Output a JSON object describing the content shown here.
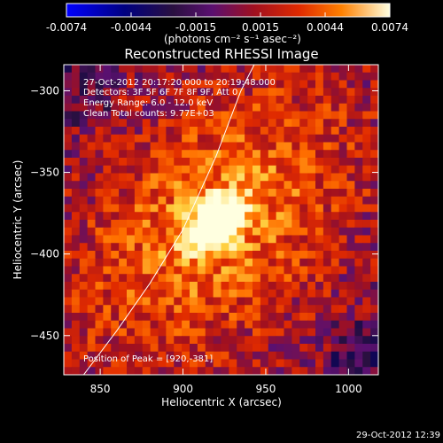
{
  "colors": {
    "background": "#000000",
    "foreground": "#ffffff",
    "colormap": [
      "#0000ff",
      "#000060",
      "#2a1040",
      "#5a1070",
      "#a01020",
      "#e02a00",
      "#ff7000",
      "#ffd040",
      "#ffffe0"
    ]
  },
  "colorbar": {
    "ticks": [
      "-0.0074",
      "-0.0044",
      "-0.0015",
      "0.0015",
      "0.0044",
      "0.0074"
    ],
    "units": "(photons cm⁻² s⁻¹ asec⁻²)"
  },
  "overlay": {
    "line1": "27-Oct-2012 20:17:20.000 to 20:19:48.000",
    "line2": "Detectors: 3F 5F 6F 7F 8F 9F, Att 0",
    "line3": "Energy Range: 6.0 - 12.0 keV",
    "line4": "Clean    Total counts: 9.77E+03",
    "peak": "Position of Peak = [920,-381]"
  },
  "footer": {
    "timestamp": "29-Oct-2012 12:39"
  },
  "chart_data": {
    "type": "heatmap",
    "title": "Reconstructed RHESSI Image",
    "xlabel": "Heliocentric X (arcsec)",
    "ylabel": "Heliocentric Y (arcsec)",
    "xlim": [
      828,
      1018
    ],
    "ylim": [
      -474,
      -284
    ],
    "x_ticks": [
      850,
      900,
      950,
      1000
    ],
    "y_ticks": [
      -300,
      -350,
      -400,
      -450
    ],
    "color_range": [
      -0.0074,
      0.0074
    ],
    "peak": {
      "x": 920,
      "y": -381,
      "value": 0.0074
    },
    "limb_curve": [
      [
        840,
        -474
      ],
      [
        860,
        -447
      ],
      [
        880,
        -418
      ],
      [
        900,
        -385
      ],
      [
        920,
        -340
      ],
      [
        935,
        -300
      ],
      [
        943,
        -284
      ]
    ]
  }
}
